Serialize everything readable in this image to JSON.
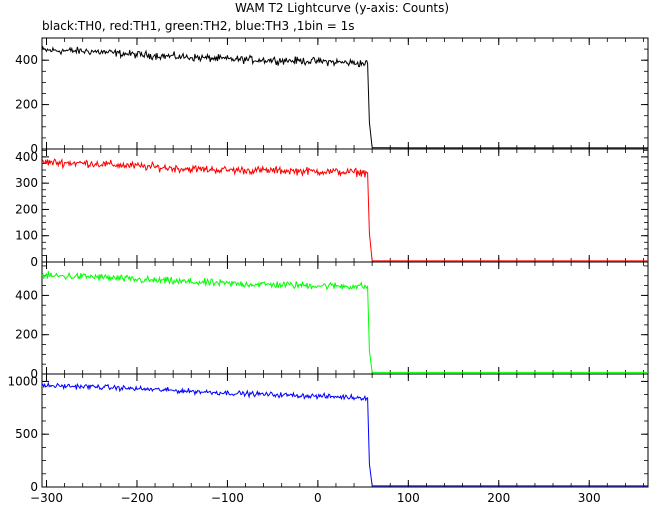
{
  "chart_data": {
    "title": "WAM T2 Lightcurve (y-axis: Counts)",
    "subtitle": "black:TH0, red:TH1, green:TH2, blue:TH3 ,1bin = 1s",
    "type": "line",
    "xlim": [
      -305,
      365
    ],
    "x_ticks": [
      -300,
      -200,
      -100,
      0,
      100,
      200,
      300
    ],
    "x_tick_labels": [
      "−300",
      "−200",
      "−100",
      "0",
      "100",
      "200",
      "300"
    ],
    "grid": false,
    "panels": [
      {
        "name": "TH0",
        "color": "#000000",
        "ylim": [
          0,
          500
        ],
        "y_ticks": [
          0,
          200,
          400
        ],
        "y_tick_labels": [
          "0",
          "200",
          "400"
        ],
        "segments": [
          {
            "x": [
              -305,
              -250,
              -200,
              -150,
              -100,
              -50,
              0,
              55,
              57,
              60
            ],
            "y": [
              445,
              440,
              425,
              415,
              405,
              400,
              395,
              385,
              120,
              8
            ]
          },
          {
            "x": [
              60,
              100,
              200,
              300,
              365
            ],
            "y": [
              6,
              5,
              5,
              5,
              5
            ]
          }
        ],
        "noise": 25
      },
      {
        "name": "TH1",
        "color": "#ff0000",
        "ylim": [
          0,
          430
        ],
        "y_ticks": [
          0,
          100,
          200,
          300,
          400
        ],
        "y_tick_labels": [
          "0",
          "100",
          "200",
          "300",
          "400"
        ],
        "segments": [
          {
            "x": [
              -305,
              -250,
              -200,
              -150,
              -100,
              -50,
              0,
              55,
              57,
              60
            ],
            "y": [
              380,
              375,
              365,
              355,
              350,
              348,
              345,
              340,
              110,
              6
            ]
          },
          {
            "x": [
              60,
              100,
              200,
              300,
              365
            ],
            "y": [
              4,
              4,
              4,
              4,
              4
            ]
          }
        ],
        "noise": 22
      },
      {
        "name": "TH2",
        "color": "#00ff00",
        "ylim": [
          0,
          570
        ],
        "y_ticks": [
          0,
          200,
          400
        ],
        "y_tick_labels": [
          "0",
          "200",
          "400"
        ],
        "segments": [
          {
            "x": [
              -305,
              -250,
              -200,
              -150,
              -100,
              -50,
              0,
              55,
              57,
              60
            ],
            "y": [
              500,
              495,
              480,
              470,
              460,
              455,
              450,
              445,
              120,
              10
            ]
          },
          {
            "x": [
              60,
              100,
              200,
              300,
              365
            ],
            "y": [
              8,
              8,
              8,
              8,
              8
            ]
          }
        ],
        "noise": 28
      },
      {
        "name": "TH3",
        "color": "#0000ff",
        "ylim": [
          0,
          1070
        ],
        "y_ticks": [
          0,
          500,
          1000
        ],
        "y_tick_labels": [
          "0",
          "500",
          "1000"
        ],
        "segments": [
          {
            "x": [
              -305,
              -250,
              -200,
              -150,
              -100,
              -50,
              0,
              55,
              57,
              60
            ],
            "y": [
              960,
              950,
              930,
              910,
              890,
              875,
              860,
              845,
              220,
              15
            ]
          },
          {
            "x": [
              60,
              100,
              200,
              300,
              365
            ],
            "y": [
              10,
              10,
              10,
              10,
              10
            ]
          }
        ],
        "noise": 35
      }
    ]
  }
}
